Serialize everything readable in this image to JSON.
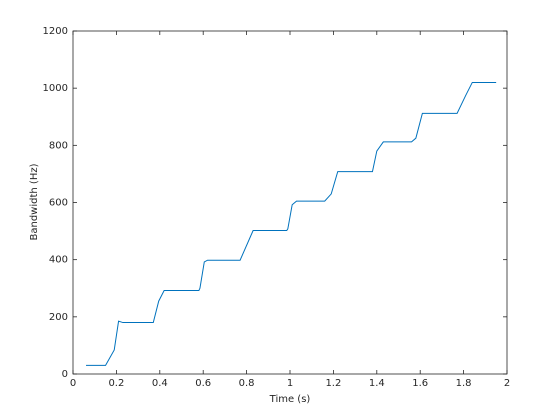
{
  "chart_data": {
    "type": "line",
    "xlabel": "Time (s)",
    "ylabel": "Bandwidth (Hz)",
    "xlim": [
      0,
      2
    ],
    "ylim": [
      0,
      1200
    ],
    "xticks": [
      0,
      0.2,
      0.4,
      0.6,
      0.8,
      1,
      1.2,
      1.4,
      1.6,
      1.8,
      2
    ],
    "yticks": [
      0,
      200,
      400,
      600,
      800,
      1000,
      1200
    ],
    "series": [
      {
        "color": "#0072bd",
        "x": [
          0.06,
          0.15,
          0.19,
          0.21,
          0.23,
          0.37,
          0.395,
          0.42,
          0.58,
          0.585,
          0.605,
          0.62,
          0.77,
          0.83,
          0.985,
          0.99,
          1.01,
          1.03,
          1.16,
          1.19,
          1.22,
          1.38,
          1.4,
          1.43,
          1.56,
          1.58,
          1.61,
          1.77,
          1.81,
          1.84,
          1.95
        ],
        "values": [
          30,
          30,
          84,
          185,
          180,
          180,
          255,
          292,
          292,
          300,
          392,
          398,
          398,
          502,
          502,
          508,
          592,
          605,
          605,
          630,
          708,
          708,
          780,
          812,
          812,
          825,
          912,
          912,
          975,
          1020,
          1020
        ]
      }
    ]
  }
}
